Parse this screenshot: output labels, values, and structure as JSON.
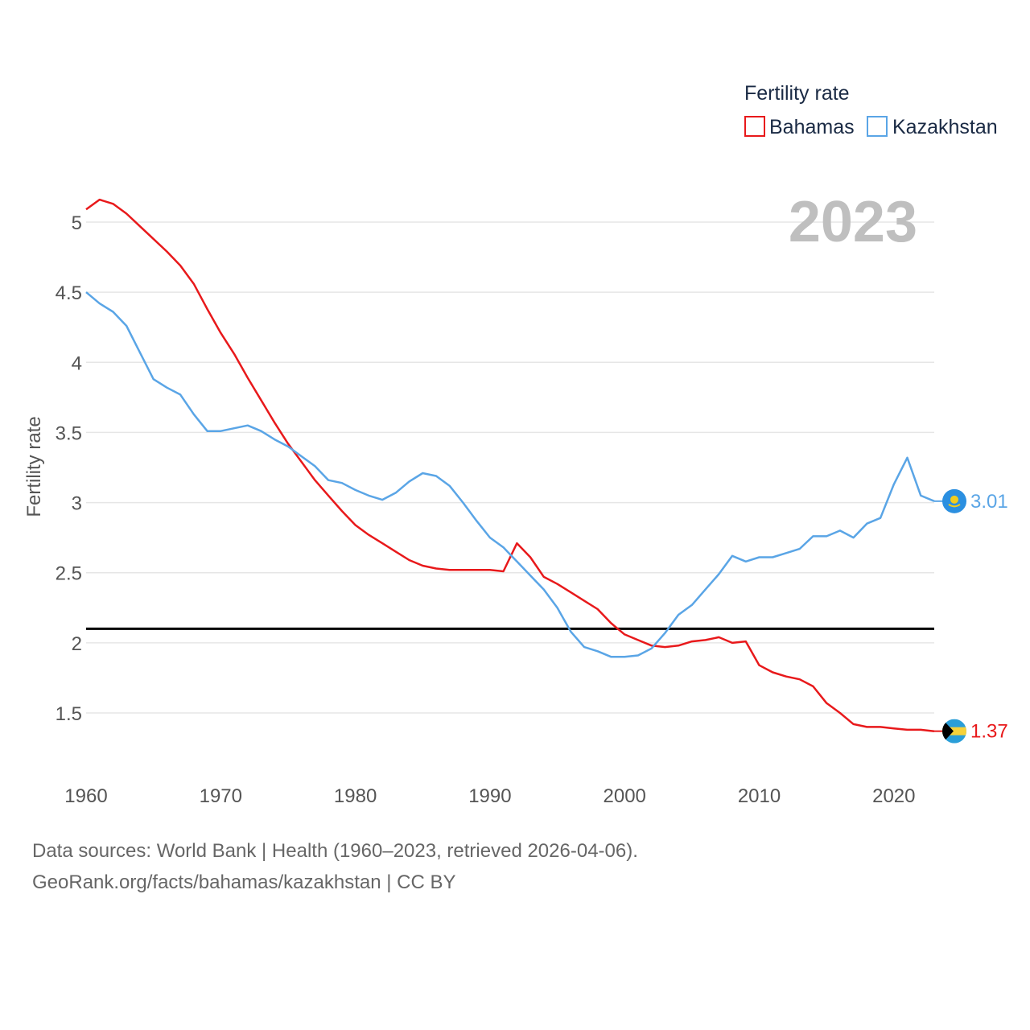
{
  "chart_data": {
    "type": "line",
    "ylabel": "Fertility rate",
    "xlabel": "",
    "legend_title": "Fertility rate",
    "legend_position": "top-right",
    "highlight_year": "2023",
    "xlim": [
      1960,
      2023
    ],
    "ylim": [
      1.1,
      5.2
    ],
    "x_ticks": [
      1960,
      1970,
      1980,
      1990,
      2000,
      2010,
      2020
    ],
    "y_ticks": [
      1.5,
      2,
      2.5,
      3,
      3.5,
      4,
      4.5,
      5
    ],
    "y_tick_labels": [
      "1.5",
      "2",
      "2.5",
      "3",
      "3.5",
      "4",
      "4.5",
      "5"
    ],
    "reference_line": 2.1,
    "grid": true,
    "x": [
      1960,
      1961,
      1962,
      1963,
      1964,
      1965,
      1966,
      1967,
      1968,
      1969,
      1970,
      1971,
      1972,
      1973,
      1974,
      1975,
      1976,
      1977,
      1978,
      1979,
      1980,
      1981,
      1982,
      1983,
      1984,
      1985,
      1986,
      1987,
      1988,
      1989,
      1990,
      1991,
      1992,
      1993,
      1994,
      1995,
      1996,
      1997,
      1998,
      1999,
      2000,
      2001,
      2002,
      2003,
      2004,
      2005,
      2006,
      2007,
      2008,
      2009,
      2010,
      2011,
      2012,
      2013,
      2014,
      2015,
      2016,
      2017,
      2018,
      2019,
      2020,
      2021,
      2022,
      2023
    ],
    "series": [
      {
        "name": "Bahamas",
        "color": "#e8191b",
        "end_label": "1.37",
        "values": [
          5.09,
          5.16,
          5.13,
          5.06,
          4.97,
          4.88,
          4.79,
          4.69,
          4.56,
          4.38,
          4.21,
          4.06,
          3.89,
          3.73,
          3.57,
          3.42,
          3.29,
          3.16,
          3.05,
          2.94,
          2.84,
          2.77,
          2.71,
          2.65,
          2.59,
          2.55,
          2.53,
          2.52,
          2.52,
          2.52,
          2.52,
          2.51,
          2.71,
          2.61,
          2.47,
          2.42,
          2.36,
          2.3,
          2.24,
          2.14,
          2.06,
          2.02,
          1.98,
          1.97,
          1.98,
          2.01,
          2.02,
          2.04,
          2.0,
          2.01,
          1.84,
          1.79,
          1.76,
          1.74,
          1.69,
          1.57,
          1.5,
          1.42,
          1.4,
          1.4,
          1.39,
          1.38,
          1.38,
          1.37
        ]
      },
      {
        "name": "Kazakhstan",
        "color": "#5aa5e6",
        "end_label": "3.01",
        "values": [
          4.5,
          4.42,
          4.36,
          4.26,
          4.07,
          3.88,
          3.82,
          3.77,
          3.63,
          3.51,
          3.51,
          3.53,
          3.55,
          3.51,
          3.45,
          3.4,
          3.33,
          3.26,
          3.16,
          3.14,
          3.09,
          3.05,
          3.02,
          3.07,
          3.15,
          3.21,
          3.19,
          3.12,
          3.0,
          2.87,
          2.75,
          2.68,
          2.58,
          2.48,
          2.38,
          2.25,
          2.08,
          1.97,
          1.94,
          1.9,
          1.9,
          1.91,
          1.96,
          2.07,
          2.2,
          2.27,
          2.38,
          2.49,
          2.62,
          2.58,
          2.61,
          2.61,
          2.64,
          2.67,
          2.76,
          2.76,
          2.8,
          2.75,
          2.85,
          2.89,
          3.13,
          3.32,
          3.05,
          3.01
        ]
      }
    ]
  },
  "footer": {
    "line1": "Data sources: World Bank | Health (1960–2023, retrieved 2026-04-06).",
    "line2": "GeoRank.org/facts/bahamas/kazakhstan | CC BY"
  }
}
